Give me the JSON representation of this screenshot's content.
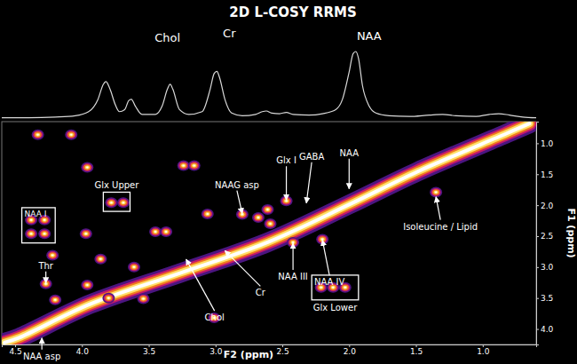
{
  "chart_data": [
    {
      "type": "line",
      "title": "2D L-COSY RRMS",
      "x": [
        4.6,
        4.4,
        4.2,
        4.05,
        3.95,
        3.88,
        3.84,
        3.82,
        3.79,
        3.75,
        3.72,
        3.68,
        3.65,
        3.63,
        3.6,
        3.55,
        3.45,
        3.4,
        3.36,
        3.34,
        3.32,
        3.27,
        3.2,
        3.1,
        3.04,
        3.01,
        2.99,
        2.97,
        2.93,
        2.88,
        2.8,
        2.7,
        2.65,
        2.62,
        2.58,
        2.52,
        2.47,
        2.42,
        2.3,
        2.2,
        2.1,
        2.05,
        2.0,
        1.97,
        1.95,
        1.93,
        1.9,
        1.85,
        1.8,
        1.7,
        1.55,
        1.4,
        1.3,
        1.2,
        1.05,
        0.95,
        0.88,
        0.8,
        0.7,
        0.6
      ],
      "values": [
        0.03,
        0.03,
        0.04,
        0.06,
        0.12,
        0.3,
        0.52,
        0.56,
        0.45,
        0.22,
        0.12,
        0.15,
        0.28,
        0.3,
        0.2,
        0.08,
        0.08,
        0.2,
        0.45,
        0.52,
        0.45,
        0.15,
        0.08,
        0.12,
        0.45,
        0.68,
        0.71,
        0.62,
        0.3,
        0.1,
        0.06,
        0.08,
        0.12,
        0.13,
        0.1,
        0.09,
        0.11,
        0.08,
        0.07,
        0.09,
        0.15,
        0.3,
        0.7,
        0.97,
        1.0,
        0.9,
        0.5,
        0.2,
        0.1,
        0.06,
        0.05,
        0.07,
        0.08,
        0.06,
        0.05,
        0.08,
        0.09,
        0.07,
        0.04,
        0.03
      ],
      "xlim": [
        4.6,
        0.6
      ],
      "ylim": [
        0,
        1
      ],
      "tick_labels": false,
      "annotations": [
        {
          "text": "Chol",
          "x": 3.34,
          "y": 0.52
        },
        {
          "text": "Cr",
          "x": 2.99,
          "y": 0.71
        },
        {
          "text": "NAA",
          "x": 1.95,
          "y": 1.0
        }
      ]
    },
    {
      "type": "contour",
      "xlabel": "F2 (ppm)",
      "ylabel": "F1 (ppm)",
      "xlim": [
        4.6,
        0.6
      ],
      "ylim": [
        0.65,
        4.25
      ],
      "xticks": [
        4.5,
        {
          "value": 4,
          "label": "4.0"
        },
        3.5,
        {
          "value": 3,
          "label": "3.0"
        },
        2.5,
        {
          "value": 2,
          "label": "2.0"
        },
        1.5,
        {
          "value": 1,
          "label": "1.0"
        }
      ],
      "yticks": [
        {
          "value": 1,
          "label": "1.0"
        },
        1.5,
        {
          "value": 2,
          "label": "2.0"
        },
        2.5,
        {
          "value": 3,
          "label": "3.0"
        },
        3.5,
        {
          "value": 4,
          "label": "4.0"
        }
      ],
      "grid": false,
      "diagonal": {
        "x": [
          4.58,
          4.47,
          3.94,
          3.27,
          2.61,
          2.0,
          1.49,
          0.82,
          0.65
        ],
        "y": [
          4.22,
          4.14,
          3.6,
          3.1,
          2.6,
          1.99,
          1.46,
          0.84,
          0.68
        ]
      },
      "peaks": {
        "x": [
          4.38,
          4.28,
          4.38,
          4.28,
          3.78,
          3.69,
          2.21,
          2.12,
          2.03,
          4.27,
          2.8,
          2.47,
          2.42,
          2.2,
          1.35,
          4.33,
          4.08,
          3.96,
          3.24,
          3.16,
          3.45,
          3.37,
          4.22,
          3.97,
          2.68,
          2.59,
          4.2,
          3.01,
          3.61,
          3.86,
          3.06,
          3.96,
          3.8,
          2.61,
          3.54
        ],
        "y": [
          2.24,
          2.24,
          2.46,
          2.46,
          1.96,
          1.96,
          3.33,
          3.33,
          3.33,
          3.27,
          2.15,
          1.93,
          2.6,
          2.55,
          1.79,
          0.86,
          0.86,
          1.39,
          1.36,
          1.36,
          2.43,
          2.43,
          2.81,
          2.46,
          2.2,
          2.3,
          3.53,
          3.82,
          3.0,
          2.87,
          2.14,
          3.29,
          3.5,
          2.07,
          3.51
        ]
      },
      "annotations": [
        {
          "text": "NAA I",
          "region": {
            "x": [
              4.45,
              4.2
            ],
            "y": [
              2.04,
              2.61
            ]
          }
        },
        {
          "text": "Glx Upper",
          "region": {
            "x": [
              3.84,
              3.64
            ],
            "y": [
              1.79,
              2.1
            ]
          }
        },
        {
          "text": "Glx Lower",
          "region": {
            "x": [
              2.28,
              1.93
            ],
            "y": [
              3.13,
              3.53
            ]
          }
        },
        {
          "text": "Thr",
          "x": 4.27,
          "y": 3.27
        },
        {
          "text": "NAAG asp",
          "x": 2.8,
          "y": 2.15
        },
        {
          "text": "Glx I",
          "x": 2.47,
          "y": 1.93
        },
        {
          "text": "GABA",
          "x": 2.32,
          "y": 1.98
        },
        {
          "text": "NAA",
          "x": 2.0,
          "y": 1.75
        },
        {
          "text": "NAA III",
          "x": 2.42,
          "y": 2.6
        },
        {
          "text": "NAA IV",
          "x": 2.2,
          "y": 2.55
        },
        {
          "text": "Cr",
          "x": 2.93,
          "y": 2.72
        },
        {
          "text": "Chol",
          "x": 3.22,
          "y": 2.86
        },
        {
          "text": "Isoleucine / Lipid",
          "x": 1.35,
          "y": 1.85
        },
        {
          "text": "NAA asp",
          "x": 4.3,
          "y": 4.13
        }
      ]
    }
  ]
}
